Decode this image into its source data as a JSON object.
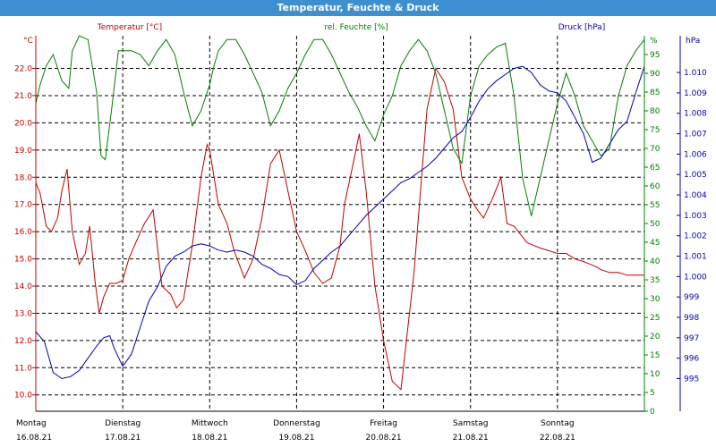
{
  "window_title": "Temperatur, Feuchte & Druck",
  "colors": {
    "temperature": "#c00000",
    "humidity": "#008000",
    "pressure": "#0000b0",
    "title_bar": "#3d8fd0"
  },
  "chart_data": {
    "type": "line",
    "title": "Temperatur, Feuchte & Druck",
    "grid": true,
    "x_ticks": [
      {
        "day": "Montag",
        "date": "16.08.21"
      },
      {
        "day": "Dienstag",
        "date": "17.08.21"
      },
      {
        "day": "Mittwoch",
        "date": "18.08.21"
      },
      {
        "day": "Donnerstag",
        "date": "19.08.21"
      },
      {
        "day": "Freitag",
        "date": "20.08.21"
      },
      {
        "day": "Samstag",
        "date": "21.08.21"
      },
      {
        "day": "Sonntag",
        "date": "22.08.21"
      }
    ],
    "x_range_days": [
      0,
      7
    ],
    "axes": {
      "temperature": {
        "label": "Temperatur [°C]",
        "unit": "°C",
        "ylim": [
          9.4,
          23.2
        ],
        "ticks": [
          "10.0",
          "11.0",
          "12.0",
          "13.0",
          "14.0",
          "15.0",
          "16.0",
          "17.0",
          "18.0",
          "19.0",
          "20.0",
          "21.0",
          "22.0"
        ]
      },
      "humidity": {
        "label": "rel. Feuchte [%]",
        "unit": "%",
        "ylim": [
          0,
          100
        ],
        "ticks": [
          "0",
          "5",
          "10",
          "15",
          "20",
          "25",
          "30",
          "35",
          "40",
          "45",
          "50",
          "55",
          "60",
          "65",
          "70",
          "75",
          "80",
          "85",
          "90",
          "95"
        ]
      },
      "pressure": {
        "label": "Druck [hPa]",
        "unit": "hPa",
        "ylim": [
          993.4,
          1011.8
        ],
        "ticks": [
          "995",
          "996",
          "997",
          "998",
          "999",
          "1.000",
          "1.001",
          "1.002",
          "1.003",
          "1.004",
          "1.005",
          "1.006",
          "1.007",
          "1.008",
          "1.009",
          "1.010"
        ]
      }
    },
    "series": [
      {
        "name": "Temperatur [°C]",
        "axis": "temperature",
        "x": [
          0.0,
          0.05,
          0.12,
          0.18,
          0.25,
          0.3,
          0.36,
          0.42,
          0.5,
          0.57,
          0.62,
          0.68,
          0.73,
          0.78,
          0.85,
          0.92,
          1.0,
          1.07,
          1.15,
          1.25,
          1.35,
          1.45,
          1.55,
          1.62,
          1.7,
          1.8,
          1.9,
          1.97,
          2.0,
          2.1,
          2.2,
          2.28,
          2.4,
          2.5,
          2.6,
          2.7,
          2.8,
          2.9,
          3.0,
          3.1,
          3.2,
          3.3,
          3.4,
          3.5,
          3.55,
          3.65,
          3.72,
          3.8,
          3.9,
          4.0,
          4.1,
          4.2,
          4.35,
          4.5,
          4.6,
          4.7,
          4.75,
          4.8,
          4.9,
          5.0,
          5.08,
          5.15,
          5.25,
          5.35,
          5.42,
          5.5,
          5.55,
          5.6,
          5.65,
          5.72,
          5.8,
          5.9,
          6.0,
          6.1,
          6.2,
          6.3,
          6.38,
          6.45,
          6.5,
          6.6,
          6.7,
          6.8,
          6.9,
          7.0
        ],
        "values": [
          17.8,
          17.4,
          16.2,
          16.0,
          16.5,
          17.5,
          18.3,
          16.0,
          14.8,
          15.2,
          16.2,
          14.2,
          13.0,
          13.6,
          14.1,
          14.1,
          14.2,
          15.0,
          15.6,
          16.3,
          16.8,
          14.0,
          13.7,
          13.2,
          13.5,
          15.5,
          18.0,
          19.2,
          19.0,
          17.0,
          16.3,
          15.3,
          14.3,
          15.0,
          16.5,
          18.5,
          19.0,
          17.5,
          16.0,
          15.3,
          14.5,
          14.1,
          14.3,
          15.5,
          17.0,
          18.5,
          19.6,
          17.5,
          14.0,
          12.0,
          10.5,
          10.2,
          14.5,
          20.5,
          22.0,
          21.5,
          21.0,
          20.5,
          18.0,
          17.2,
          16.8,
          16.5,
          17.2,
          18.0,
          16.3,
          16.2,
          16.0,
          15.8,
          15.6,
          15.5,
          15.4,
          15.3,
          15.2,
          15.2,
          15.0,
          14.9,
          14.8,
          14.7,
          14.6,
          14.5,
          14.5,
          14.4,
          14.4,
          14.4
        ]
      },
      {
        "name": "rel. Feuchte [%]",
        "axis": "humidity",
        "x": [
          0.0,
          0.05,
          0.12,
          0.2,
          0.3,
          0.38,
          0.42,
          0.5,
          0.6,
          0.7,
          0.75,
          0.8,
          0.88,
          0.95,
          1.0,
          1.1,
          1.2,
          1.3,
          1.4,
          1.5,
          1.6,
          1.7,
          1.8,
          1.9,
          2.0,
          2.05,
          2.1,
          2.2,
          2.3,
          2.4,
          2.5,
          2.6,
          2.7,
          2.8,
          2.9,
          3.0,
          3.1,
          3.2,
          3.3,
          3.4,
          3.5,
          3.6,
          3.7,
          3.8,
          3.9,
          4.0,
          4.1,
          4.15,
          4.2,
          4.3,
          4.4,
          4.5,
          4.6,
          4.7,
          4.8,
          4.9,
          5.0,
          5.1,
          5.2,
          5.3,
          5.4,
          5.5,
          5.6,
          5.7,
          5.8,
          5.9,
          6.0,
          6.1,
          6.2,
          6.3,
          6.4,
          6.5,
          6.6,
          6.7,
          6.8,
          6.9,
          7.0
        ],
        "values": [
          82,
          87,
          92,
          95,
          88,
          86,
          96,
          100,
          99,
          85,
          68,
          67,
          82,
          96,
          96,
          96,
          95,
          92,
          96,
          99,
          95,
          85,
          76,
          80,
          87,
          92,
          96,
          99,
          99,
          95,
          90,
          85,
          76,
          80,
          86,
          90,
          95,
          99,
          99,
          95,
          90,
          85,
          81,
          76,
          72,
          79,
          84,
          88,
          92,
          96,
          99,
          96,
          90,
          80,
          70,
          66,
          84,
          92,
          95,
          97,
          98,
          84,
          62,
          52,
          62,
          72,
          82,
          90,
          84,
          76,
          72,
          68,
          70,
          84,
          92,
          96,
          99
        ]
      },
      {
        "name": "Druck [hPa]",
        "axis": "pressure",
        "x": [
          0.0,
          0.1,
          0.2,
          0.3,
          0.4,
          0.5,
          0.6,
          0.7,
          0.78,
          0.85,
          0.9,
          1.0,
          1.1,
          1.2,
          1.3,
          1.4,
          1.5,
          1.6,
          1.7,
          1.8,
          1.9,
          2.0,
          2.1,
          2.2,
          2.3,
          2.4,
          2.5,
          2.6,
          2.7,
          2.8,
          2.9,
          3.0,
          3.1,
          3.2,
          3.3,
          3.4,
          3.5,
          3.6,
          3.7,
          3.8,
          3.9,
          4.0,
          4.1,
          4.2,
          4.3,
          4.4,
          4.5,
          4.6,
          4.7,
          4.8,
          4.9,
          5.0,
          5.1,
          5.2,
          5.3,
          5.4,
          5.5,
          5.6,
          5.7,
          5.8,
          5.9,
          6.0,
          6.1,
          6.2,
          6.3,
          6.4,
          6.5,
          6.6,
          6.7,
          6.8,
          6.9,
          7.0
        ],
        "values": [
          997.3,
          996.8,
          995.3,
          995.0,
          995.1,
          995.4,
          996.0,
          996.6,
          997.0,
          997.1,
          996.5,
          995.6,
          996.2,
          997.5,
          998.8,
          999.5,
          1000.5,
          1001.0,
          1001.2,
          1001.5,
          1001.6,
          1001.5,
          1001.3,
          1001.2,
          1001.3,
          1001.2,
          1001.0,
          1000.6,
          1000.4,
          1000.1,
          1000.0,
          999.6,
          999.8,
          1000.4,
          1000.8,
          1001.2,
          1001.5,
          1002.0,
          1002.5,
          1003.0,
          1003.4,
          1003.8,
          1004.2,
          1004.6,
          1004.8,
          1005.1,
          1005.4,
          1005.8,
          1006.3,
          1006.8,
          1007.1,
          1007.8,
          1008.6,
          1009.2,
          1009.6,
          1009.9,
          1010.2,
          1010.3,
          1010.0,
          1009.4,
          1009.1,
          1009.0,
          1008.6,
          1007.8,
          1007.0,
          1005.6,
          1005.8,
          1006.5,
          1007.2,
          1007.6,
          1009.0,
          1010.3
        ]
      }
    ]
  }
}
